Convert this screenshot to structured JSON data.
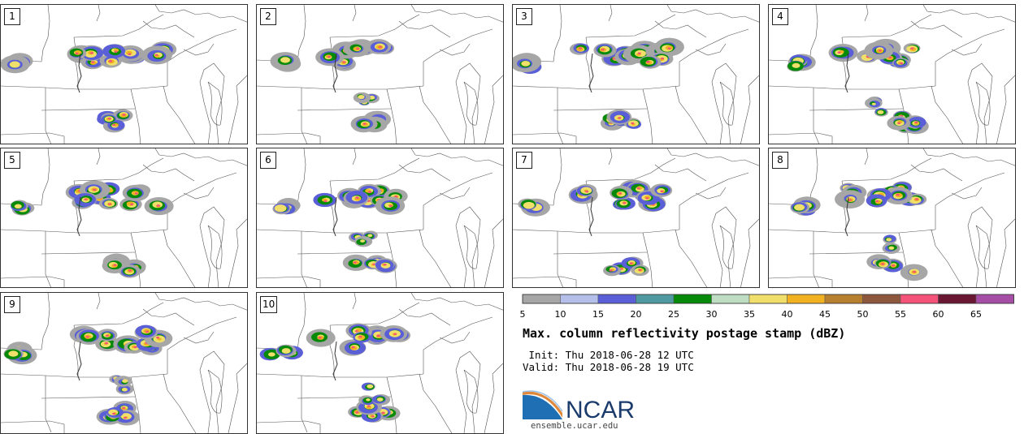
{
  "panels": [
    {
      "label": "1"
    },
    {
      "label": "2"
    },
    {
      "label": "3"
    },
    {
      "label": "4"
    },
    {
      "label": "5"
    },
    {
      "label": "6"
    },
    {
      "label": "7"
    },
    {
      "label": "8"
    },
    {
      "label": "9"
    },
    {
      "label": "10"
    }
  ],
  "colorbar": {
    "ticks": [
      "5",
      "10",
      "15",
      "20",
      "25",
      "30",
      "35",
      "40",
      "45",
      "50",
      "55",
      "60",
      "65"
    ],
    "colors": [
      "#a6a6a6",
      "#b4bfea",
      "#5a5fd8",
      "#4e9aa0",
      "#078a0a",
      "#bfddc2",
      "#f0df6a",
      "#f1b120",
      "#b6802f",
      "#8c573d",
      "#f5527a",
      "#6a1734",
      "#a64ea6"
    ]
  },
  "title": "Max. column reflectivity postage stamp (dBZ)",
  "init": " Init: Thu 2018-06-28 12 UTC",
  "valid": "Valid: Thu 2018-06-28 19 UTC",
  "logo": {
    "text": "NCAR",
    "url": "ensemble.ucar.edu"
  },
  "storm_colors": {
    "light": "#a6a6a6",
    "blue": "#5a5fd8",
    "green": "#078a0a",
    "yellow": "#f0df6a",
    "orange": "#f1b120",
    "red": "#f5527a"
  }
}
